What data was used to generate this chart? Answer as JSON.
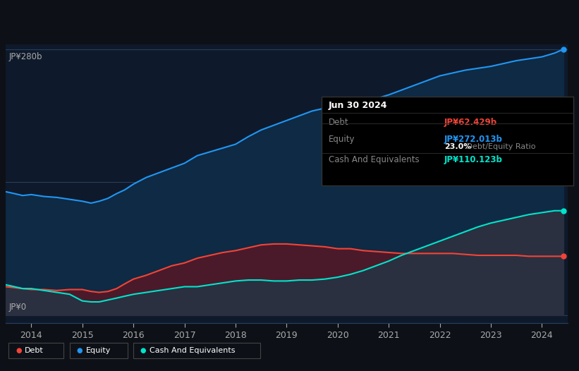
{
  "background_color": "#0d1117",
  "chart_bg_color": "#0e1a2b",
  "ylabel_top": "JP¥280b",
  "ylabel_bottom": "JP¥0",
  "x_labels": [
    "2014",
    "2015",
    "2016",
    "2017",
    "2018",
    "2019",
    "2020",
    "2021",
    "2022",
    "2023",
    "2024"
  ],
  "equity_color": "#2196f3",
  "debt_color": "#f44336",
  "cash_color": "#00e5cc",
  "equity_fill": "#0e2a44",
  "debt_fill": "#4a1a2a",
  "cash_fill": "#1a3535",
  "base_fill": "#2a3040",
  "tooltip": {
    "date": "Jun 30 2024",
    "debt_label": "Debt",
    "debt_value": "JP¥62.429b",
    "equity_label": "Equity",
    "equity_value": "JP¥272.013b",
    "ratio": "23.0%",
    "ratio_label": " Debt/Equity Ratio",
    "cash_label": "Cash And Equivalents",
    "cash_value": "JP¥110.123b"
  },
  "years": [
    2013.5,
    2013.67,
    2013.83,
    2014.0,
    2014.25,
    2014.5,
    2014.75,
    2015.0,
    2015.17,
    2015.33,
    2015.5,
    2015.67,
    2015.83,
    2016.0,
    2016.25,
    2016.5,
    2016.75,
    2017.0,
    2017.25,
    2017.5,
    2017.75,
    2018.0,
    2018.25,
    2018.5,
    2018.75,
    2019.0,
    2019.25,
    2019.5,
    2019.75,
    2020.0,
    2020.25,
    2020.5,
    2020.75,
    2021.0,
    2021.25,
    2021.5,
    2021.75,
    2022.0,
    2022.25,
    2022.5,
    2022.75,
    2023.0,
    2023.25,
    2023.5,
    2023.75,
    2024.0,
    2024.25,
    2024.42
  ],
  "equity": [
    130,
    128,
    126,
    127,
    125,
    124,
    122,
    120,
    118,
    120,
    123,
    128,
    132,
    138,
    145,
    150,
    155,
    160,
    168,
    172,
    176,
    180,
    188,
    195,
    200,
    205,
    210,
    215,
    218,
    218,
    222,
    225,
    228,
    232,
    237,
    242,
    247,
    252,
    255,
    258,
    260,
    262,
    265,
    268,
    270,
    272,
    276,
    280
  ],
  "debt": [
    30,
    29,
    28,
    27,
    27,
    26,
    27,
    27,
    25,
    24,
    25,
    28,
    33,
    38,
    42,
    47,
    52,
    55,
    60,
    63,
    66,
    68,
    71,
    74,
    75,
    75,
    74,
    73,
    72,
    70,
    70,
    68,
    67,
    66,
    65,
    65,
    65,
    65,
    65,
    64,
    63,
    63,
    63,
    63,
    62,
    62,
    62,
    62
  ],
  "cash": [
    32,
    30,
    28,
    28,
    26,
    24,
    22,
    15,
    14,
    14,
    16,
    18,
    20,
    22,
    24,
    26,
    28,
    30,
    30,
    32,
    34,
    36,
    37,
    37,
    36,
    36,
    37,
    37,
    38,
    40,
    43,
    47,
    52,
    57,
    63,
    68,
    73,
    78,
    83,
    88,
    93,
    97,
    100,
    103,
    106,
    108,
    110,
    110
  ]
}
